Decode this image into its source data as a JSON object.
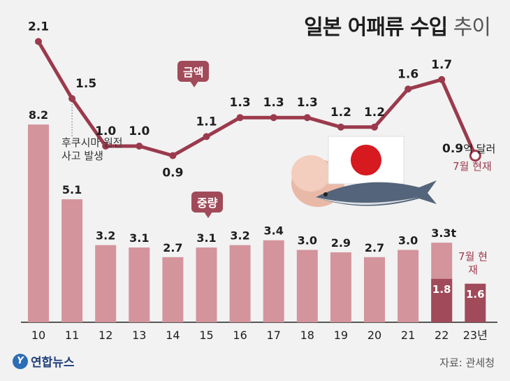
{
  "header": {
    "title_bold": "일본 어패류 수입",
    "title_light": " 추이"
  },
  "source": "자료: 관세청",
  "logo": {
    "mark": "Y",
    "text": "연합뉴스"
  },
  "annotation": "후쿠시마 원전\n사고 발생",
  "tags": {
    "amount": "금액",
    "weight": "중량"
  },
  "line_end": {
    "value": "0.9",
    "unit": "억 달러",
    "note": "7월 현재"
  },
  "current_note": "7월\n현재",
  "colors": {
    "bar": "#d4949c",
    "bar_current": "#a14b5a",
    "line": "#9b3a4d",
    "background": "#f2f2f2"
  },
  "chart_data": [
    {
      "type": "bar",
      "name": "중량",
      "categories": [
        "10",
        "11",
        "12",
        "13",
        "14",
        "15",
        "16",
        "17",
        "18",
        "19",
        "20",
        "21",
        "22",
        "23년"
      ],
      "values": [
        8.2,
        5.1,
        3.2,
        3.1,
        2.7,
        3.1,
        3.2,
        3.4,
        3.0,
        2.9,
        2.7,
        3.0,
        3.3,
        null
      ],
      "value_labels": [
        "8.2",
        "5.1",
        "3.2",
        "3.1",
        "2.7",
        "3.1",
        "3.2",
        "3.4",
        "3.0",
        "2.9",
        "2.7",
        "3.0",
        "3.3t",
        ""
      ],
      "current_year": {
        "values": [
          null,
          null,
          null,
          null,
          null,
          null,
          null,
          null,
          null,
          null,
          null,
          null,
          1.8,
          1.6
        ],
        "labels": [
          "",
          "",
          "",
          "",
          "",
          "",
          "",
          "",
          "",
          "",
          "",
          "",
          "1.8",
          "1.6"
        ]
      },
      "ylim": [
        0,
        9
      ]
    },
    {
      "type": "line",
      "name": "금액",
      "categories": [
        "10",
        "11",
        "12",
        "13",
        "14",
        "15",
        "16",
        "17",
        "18",
        "19",
        "20",
        "21",
        "22",
        "23년"
      ],
      "values": [
        2.1,
        1.5,
        1.0,
        1.0,
        0.9,
        1.1,
        1.3,
        1.3,
        1.3,
        1.2,
        1.2,
        1.6,
        1.7,
        0.9
      ],
      "value_labels": [
        "2.1",
        "1.5",
        "1.0",
        "1.0",
        "0.9",
        "1.1",
        "1.3",
        "1.3",
        "1.3",
        "1.2",
        "1.2",
        "1.6",
        "1.7",
        ""
      ]
    }
  ]
}
